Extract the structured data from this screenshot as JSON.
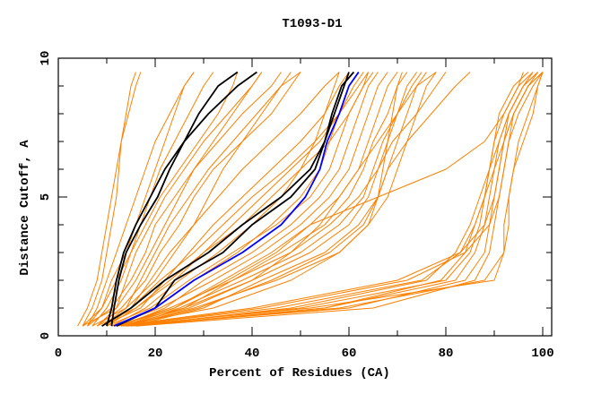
{
  "chart_data": {
    "type": "line",
    "title": "T1093-D1",
    "xlabel": "Percent of Residues (CA)",
    "ylabel": "Distance Cutoff, A",
    "xlim": [
      0,
      100
    ],
    "ylim": [
      0,
      10
    ],
    "x_ticks": [
      "0",
      "20",
      "40",
      "60",
      "80",
      "100"
    ],
    "y_ticks": [
      "0",
      "5",
      "10"
    ],
    "grid": false,
    "y_levels": [
      0.35,
      1,
      2,
      3,
      4,
      5,
      6,
      7,
      8,
      9,
      9.5
    ],
    "colors": {
      "models": "#ff8000",
      "highlight_black": "#000000",
      "highlight_blue": "#0000ff"
    },
    "series_models": [
      [
        4,
        6,
        8,
        9,
        10,
        11,
        12,
        13,
        14,
        15,
        16
      ],
      [
        5,
        7,
        9,
        10,
        11,
        12,
        12.5,
        13,
        14.5,
        16,
        17
      ],
      [
        6,
        8,
        10,
        12,
        14,
        16,
        18,
        20,
        23,
        26,
        28
      ],
      [
        5,
        9,
        11,
        14,
        16,
        18,
        20,
        22,
        24,
        26,
        28
      ],
      [
        7,
        10,
        13,
        15,
        17,
        19,
        21,
        24,
        27,
        30,
        32
      ],
      [
        8,
        12,
        14,
        16,
        19,
        22,
        26,
        30,
        35,
        40,
        42
      ],
      [
        6,
        11,
        15,
        18,
        20,
        24,
        28,
        33,
        38,
        44,
        46
      ],
      [
        9,
        14,
        17,
        20,
        23,
        27,
        31,
        36,
        41,
        46,
        48
      ],
      [
        8,
        13,
        18,
        21,
        25,
        28,
        32,
        38,
        44,
        48,
        50
      ],
      [
        10,
        15,
        19,
        23,
        28,
        33,
        38,
        44,
        50,
        55,
        58
      ],
      [
        9,
        17,
        22,
        27,
        32,
        38,
        44,
        50,
        55,
        58,
        60
      ],
      [
        11,
        18,
        25,
        33,
        40,
        46,
        50,
        53,
        55,
        57,
        58
      ],
      [
        12,
        20,
        28,
        37,
        44,
        50,
        54,
        56,
        58,
        60,
        62
      ],
      [
        10,
        19,
        27,
        36,
        45,
        52,
        56,
        58,
        60,
        63,
        64
      ],
      [
        13,
        22,
        30,
        40,
        48,
        54,
        58,
        60,
        62,
        64,
        66
      ],
      [
        11,
        21,
        32,
        42,
        50,
        56,
        60,
        62,
        64,
        66,
        68
      ],
      [
        12,
        24,
        34,
        44,
        52,
        58,
        62,
        64,
        66,
        68,
        70
      ],
      [
        14,
        26,
        36,
        46,
        55,
        60,
        63,
        65,
        68,
        70,
        72
      ],
      [
        13,
        25,
        38,
        50,
        58,
        63,
        65,
        67,
        70,
        73,
        75
      ],
      [
        12,
        23,
        36,
        48,
        56,
        62,
        66,
        68,
        70,
        72,
        74
      ],
      [
        15,
        30,
        42,
        55,
        62,
        66,
        68,
        70,
        72,
        74,
        76
      ],
      [
        14,
        28,
        45,
        58,
        64,
        66,
        67,
        68,
        69,
        70,
        71
      ],
      [
        10,
        16,
        23,
        30,
        38,
        44,
        50,
        56,
        60,
        63,
        65
      ],
      [
        9,
        15,
        21,
        28,
        34,
        40,
        47,
        53,
        58,
        61,
        63
      ],
      [
        13,
        27,
        40,
        52,
        60,
        64,
        66,
        69,
        74,
        78,
        80
      ],
      [
        14,
        29,
        44,
        56,
        63,
        66,
        68,
        72,
        77,
        82,
        85
      ],
      [
        12,
        24,
        35,
        45,
        52,
        66,
        80,
        88,
        92,
        95,
        96
      ],
      [
        13,
        45,
        75,
        83,
        86,
        88,
        89,
        90,
        91,
        94,
        97
      ],
      [
        14,
        50,
        80,
        85,
        87,
        88,
        89,
        90,
        92,
        95,
        98
      ],
      [
        15,
        55,
        82,
        86,
        88,
        89,
        90,
        91,
        93,
        96,
        99
      ],
      [
        14,
        60,
        84,
        88,
        89,
        90,
        91,
        92,
        94,
        97,
        100
      ],
      [
        16,
        65,
        86,
        89,
        90,
        91,
        92,
        93,
        95,
        98,
        100
      ],
      [
        12,
        40,
        70,
        83,
        88,
        90,
        91,
        92,
        93,
        96,
        99
      ],
      [
        13,
        42,
        72,
        84,
        89,
        91,
        92,
        93,
        94,
        97,
        100
      ],
      [
        15,
        48,
        76,
        82,
        85,
        87,
        89,
        91,
        93,
        96,
        98
      ],
      [
        16,
        55,
        79,
        84,
        86,
        88,
        90,
        92,
        94,
        97,
        99
      ],
      [
        14,
        58,
        88,
        92,
        93,
        93,
        94,
        95,
        97,
        99,
        100
      ],
      [
        13,
        52,
        90,
        92,
        92,
        93,
        94,
        96,
        98,
        99,
        100
      ],
      [
        5,
        12,
        16,
        19,
        22,
        25,
        28,
        32,
        36,
        40,
        42
      ],
      [
        7,
        14,
        20,
        24,
        28,
        31,
        34,
        38,
        42,
        46,
        50
      ],
      [
        6,
        9,
        12,
        15,
        18,
        21,
        25,
        29,
        33,
        36,
        37
      ],
      [
        8,
        16,
        24,
        30,
        36,
        42,
        48,
        54,
        58,
        62,
        64
      ],
      [
        11,
        26,
        40,
        48,
        54,
        58,
        62,
        66,
        70,
        74,
        78
      ],
      [
        12,
        32,
        48,
        58,
        64,
        68,
        70,
        72,
        74,
        76,
        78
      ]
    ],
    "series_black": [
      [
        11,
        11.5,
        12.5,
        14,
        17,
        20.5,
        23,
        26,
        29,
        33,
        37
      ],
      [
        10,
        11,
        12,
        13.5,
        16,
        19,
        22,
        26,
        31,
        37,
        41
      ],
      [
        9,
        15,
        22,
        31,
        38,
        46,
        52,
        55,
        56.5,
        58.5,
        61
      ],
      [
        12,
        20,
        24,
        34,
        40,
        48,
        53,
        55,
        57,
        59,
        60
      ]
    ],
    "series_blue": [
      [
        11.5,
        20,
        28,
        38,
        46,
        51,
        54,
        55.5,
        58,
        60,
        62
      ]
    ]
  }
}
